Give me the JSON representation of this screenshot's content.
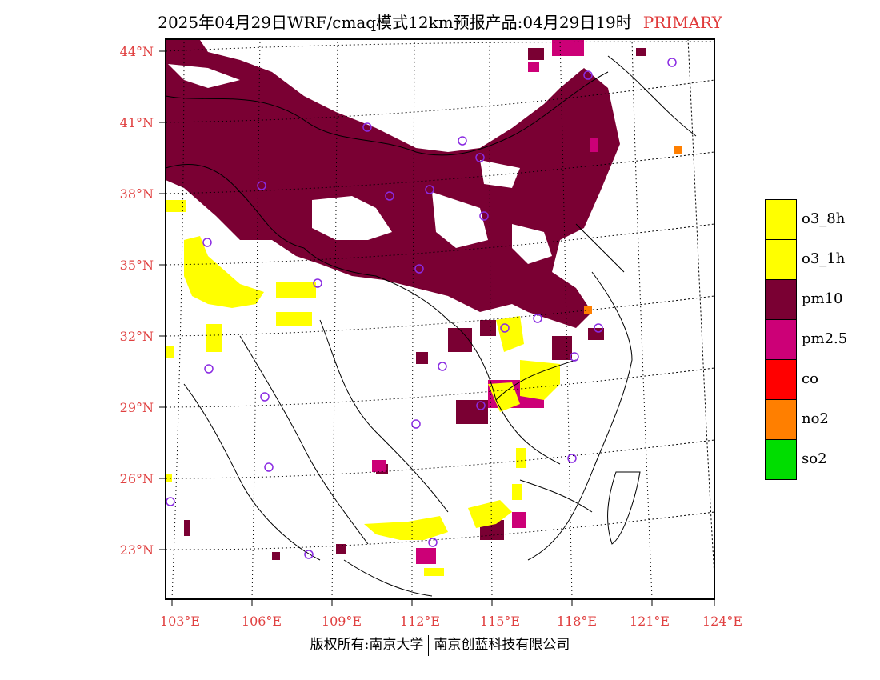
{
  "title": {
    "main": "2025年04月29日WRF/cmaq模式12km预报产品:04月29日19时",
    "tag": "PRIMARY"
  },
  "lat_labels": [
    "44°N",
    "41°N",
    "38°N",
    "35°N",
    "32°N",
    "29°N",
    "26°N",
    "23°N"
  ],
  "lon_labels": [
    "103°E",
    "106°E",
    "109°E",
    "112°E",
    "115°E",
    "118°E",
    "121°E",
    "124°E"
  ],
  "legend": [
    {
      "label": "o3_8h",
      "color": "#ffff00"
    },
    {
      "label": "o3_1h",
      "color": "#ffff00"
    },
    {
      "label": "pm10",
      "color": "#7a0033"
    },
    {
      "label": "pm2.5",
      "color": "#cc0077"
    },
    {
      "label": "co",
      "color": "#ff0000"
    },
    {
      "label": "no2",
      "color": "#ff7f00"
    },
    {
      "label": "so2",
      "color": "#00dd00"
    }
  ],
  "footer": {
    "left": "版权所有:南京大学",
    "right": "南京创蓝科技有限公司"
  }
}
